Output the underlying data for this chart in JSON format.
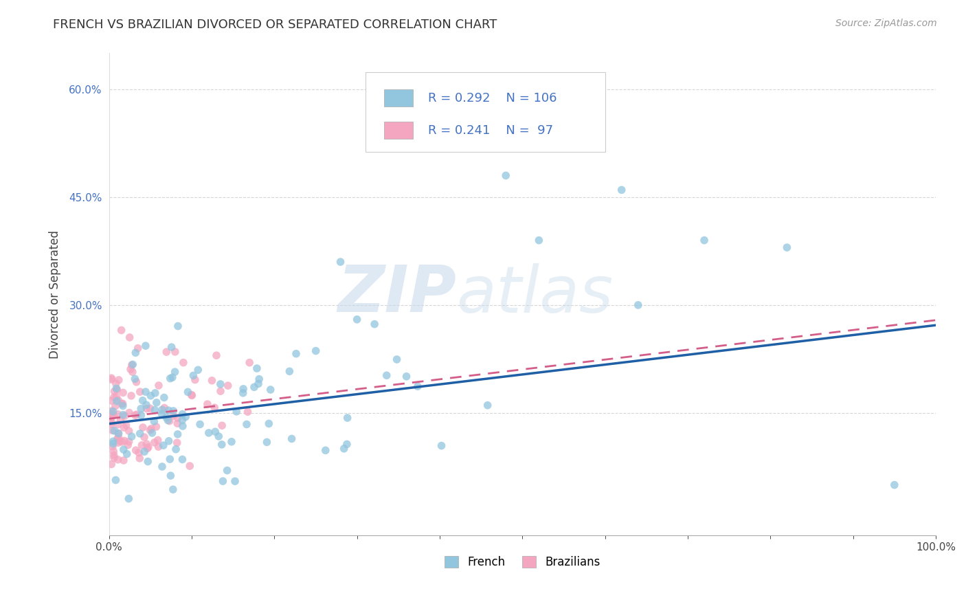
{
  "title": "FRENCH VS BRAZILIAN DIVORCED OR SEPARATED CORRELATION CHART",
  "source": "Source: ZipAtlas.com",
  "ylabel": "Divorced or Separated",
  "french_R": 0.292,
  "french_N": 106,
  "brazilian_R": 0.241,
  "brazilian_N": 97,
  "xlim": [
    0,
    1.0
  ],
  "ylim": [
    -0.02,
    0.65
  ],
  "ytick_positions": [
    0.15,
    0.3,
    0.45,
    0.6
  ],
  "ytick_labels": [
    "15.0%",
    "30.0%",
    "45.0%",
    "60.0%"
  ],
  "french_color": "#92c5de",
  "brazilian_color": "#f4a6c0",
  "french_line_color": "#1f5fa6",
  "brazilian_line_color": "#d45e8a",
  "background_color": "#ffffff",
  "grid_color": "#cccccc",
  "watermark_zip": "ZIP",
  "watermark_atlas": "atlas",
  "french_line_start_y": 0.135,
  "french_line_end_y": 0.272,
  "brazilian_line_start_y": 0.142,
  "brazilian_line_end_y": 0.279
}
